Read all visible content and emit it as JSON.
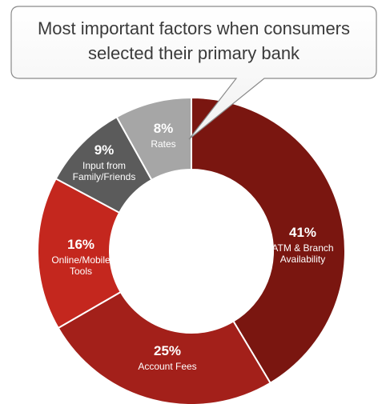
{
  "chart_data": {
    "type": "pie",
    "title_lines": [
      "Most important factors when consumers",
      "selected their primary bank"
    ],
    "slices": [
      {
        "percent_label": "41%",
        "label_lines": [
          "ATM & Branch",
          "Availability"
        ],
        "value": 41,
        "color": "#7a1610"
      },
      {
        "percent_label": "25%",
        "label_lines": [
          "Account Fees"
        ],
        "value": 25,
        "color": "#a3201a"
      },
      {
        "percent_label": "16%",
        "label_lines": [
          "Online/Mobile",
          "Tools"
        ],
        "value": 16,
        "color": "#c4271e"
      },
      {
        "percent_label": "9%",
        "label_lines": [
          "Input from",
          "Family/Friends"
        ],
        "value": 9,
        "color": "#5b5b5b"
      },
      {
        "percent_label": "8%",
        "label_lines": [
          "Rates"
        ],
        "value": 8,
        "color": "#a6a6a6"
      }
    ]
  }
}
